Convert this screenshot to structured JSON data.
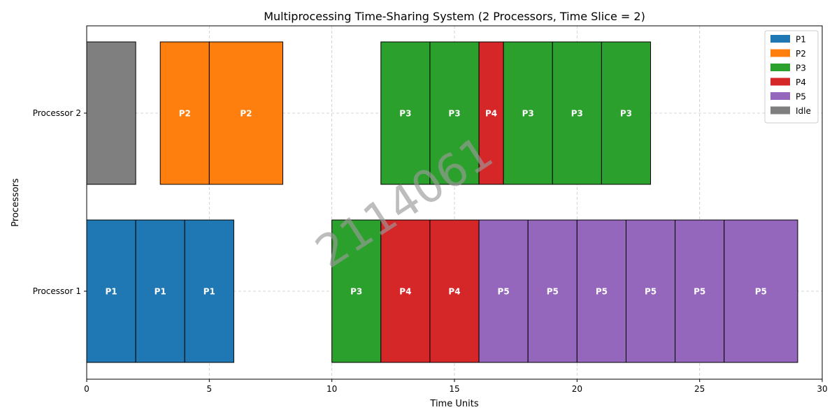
{
  "chart_data": {
    "type": "bar",
    "orientation": "horizontal-timeline",
    "title": "Multiprocessing Time-Sharing System (2 Processors, Time Slice = 2)",
    "xlabel": "Time Units",
    "ylabel": "Processors",
    "xlim": [
      0,
      30
    ],
    "xticks": [
      0,
      5,
      10,
      15,
      20,
      25,
      30
    ],
    "grid": true,
    "legend_position": "top-right",
    "categories": [
      "Processor 1",
      "Processor 2"
    ],
    "legend": [
      {
        "name": "P1",
        "color": "#1f77b4"
      },
      {
        "name": "P2",
        "color": "#ff7f0e"
      },
      {
        "name": "P3",
        "color": "#2ca02c"
      },
      {
        "name": "P4",
        "color": "#d62728"
      },
      {
        "name": "P5",
        "color": "#9467bd"
      },
      {
        "name": "Idle",
        "color": "#7f7f7f"
      }
    ],
    "series": [
      {
        "processor": "Processor 1",
        "segments": [
          {
            "process": "P1",
            "start": 0,
            "end": 2,
            "label": "P1"
          },
          {
            "process": "P1",
            "start": 2,
            "end": 4,
            "label": "P1"
          },
          {
            "process": "P1",
            "start": 4,
            "end": 6,
            "label": "P1"
          },
          {
            "process": "P3",
            "start": 10,
            "end": 12,
            "label": "P3"
          },
          {
            "process": "P4",
            "start": 12,
            "end": 14,
            "label": "P4"
          },
          {
            "process": "P4",
            "start": 14,
            "end": 16,
            "label": "P4"
          },
          {
            "process": "P5",
            "start": 16,
            "end": 18,
            "label": "P5"
          },
          {
            "process": "P5",
            "start": 18,
            "end": 20,
            "label": "P5"
          },
          {
            "process": "P5",
            "start": 20,
            "end": 22,
            "label": "P5"
          },
          {
            "process": "P5",
            "start": 22,
            "end": 24,
            "label": "P5"
          },
          {
            "process": "P5",
            "start": 24,
            "end": 26,
            "label": "P5"
          },
          {
            "process": "P5",
            "start": 26,
            "end": 29,
            "label": "P5"
          }
        ]
      },
      {
        "processor": "Processor 2",
        "segments": [
          {
            "process": "Idle",
            "start": 0,
            "end": 2,
            "label": ""
          },
          {
            "process": "P2",
            "start": 3,
            "end": 5,
            "label": "P2"
          },
          {
            "process": "P2",
            "start": 5,
            "end": 8,
            "label": "P2"
          },
          {
            "process": "P3",
            "start": 12,
            "end": 14,
            "label": "P3"
          },
          {
            "process": "P3",
            "start": 14,
            "end": 16,
            "label": "P3"
          },
          {
            "process": "P4",
            "start": 16,
            "end": 17,
            "label": "P4"
          },
          {
            "process": "P3",
            "start": 17,
            "end": 19,
            "label": "P3"
          },
          {
            "process": "P3",
            "start": 19,
            "end": 21,
            "label": "P3"
          },
          {
            "process": "P3",
            "start": 21,
            "end": 23,
            "label": "P3"
          }
        ]
      }
    ],
    "watermark": "2114061"
  }
}
